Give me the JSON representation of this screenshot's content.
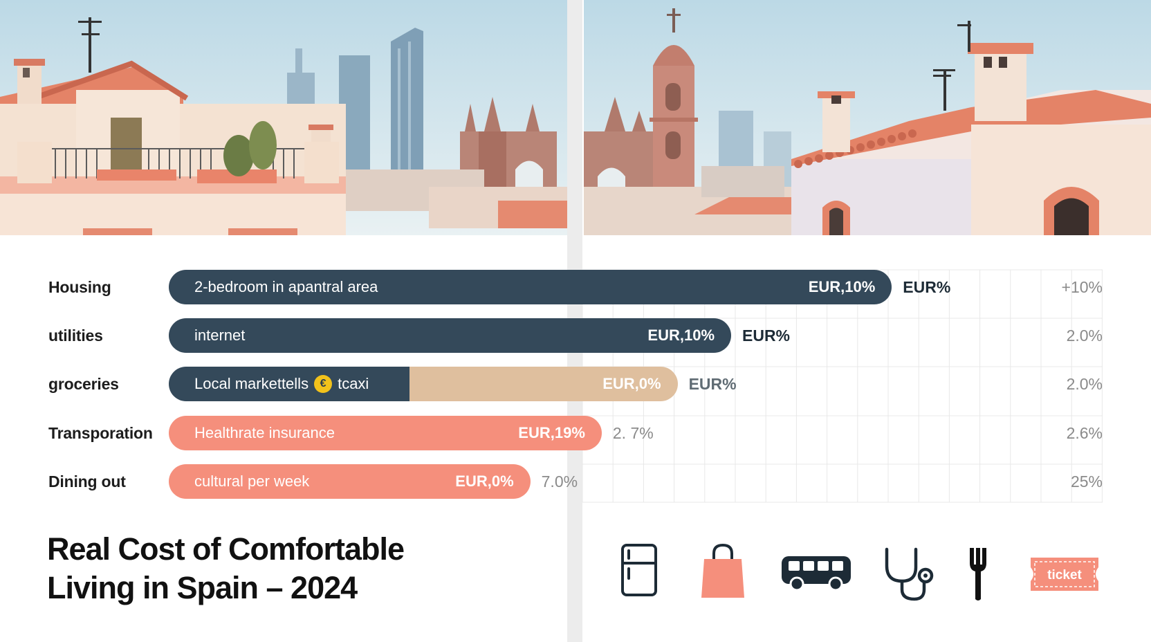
{
  "chart_data": {
    "type": "bar",
    "title": "Real Cost of Comfortable Living in Spain – 2024",
    "title_lines": [
      "Real Cost of Comfortable",
      "Living in Spain – 2024"
    ],
    "categories": [
      "Housing",
      "utilities",
      "groceries",
      "Transporation",
      "Dining out"
    ],
    "bars": [
      {
        "category": "Housing",
        "inner_label": "2-bedroom in apantral area",
        "inner_value": "EUR,10%",
        "outside_value": "EUR%",
        "right_value": "+10%",
        "length": 81,
        "split": null,
        "color": "#34495a",
        "split_color": null
      },
      {
        "category": "utilities",
        "inner_label": "internet",
        "inner_value": "EUR,10%",
        "outside_value": "EUR%",
        "right_value": "2.0%",
        "length": 63,
        "split": null,
        "color": "#34495a",
        "split_color": null
      },
      {
        "category": "groceries",
        "inner_label": "Local markettells",
        "inner_label_suffix": "tcaxi",
        "coin_glyph": "€",
        "inner_value": "EUR,0%",
        "outside_value": "EUR%",
        "right_value": "2.0%",
        "length": 57,
        "split": 27,
        "color": "#34495a",
        "split_color": "#dfbf9e"
      },
      {
        "category": "Transporation",
        "inner_label": "Healthrate insurance",
        "inner_value": "EUR,19%",
        "outside_value": "2. 7%",
        "right_value": "2.6%",
        "length": 48.5,
        "split": null,
        "color": "#f58f7c",
        "split_color": null
      },
      {
        "category": "Dining out",
        "inner_label": "cultural per week",
        "inner_value": "EUR,0%",
        "outside_value": "7.0%",
        "right_value": "25%",
        "length": 40.5,
        "split": null,
        "color": "#f58f7c",
        "split_color": null
      }
    ],
    "grid": true,
    "legend": "none"
  },
  "icons": [
    {
      "name": "refrigerator-icon"
    },
    {
      "name": "shopping-bag-icon"
    },
    {
      "name": "bus-icon"
    },
    {
      "name": "stethoscope-icon"
    },
    {
      "name": "fork-icon"
    },
    {
      "name": "ticket-icon",
      "label": "ticket"
    }
  ],
  "colors": {
    "navy": "#34495a",
    "coral": "#f58f7c",
    "sand": "#dfbf9e",
    "sky": "#cfe3ec",
    "terracotta": "#e58a70"
  }
}
